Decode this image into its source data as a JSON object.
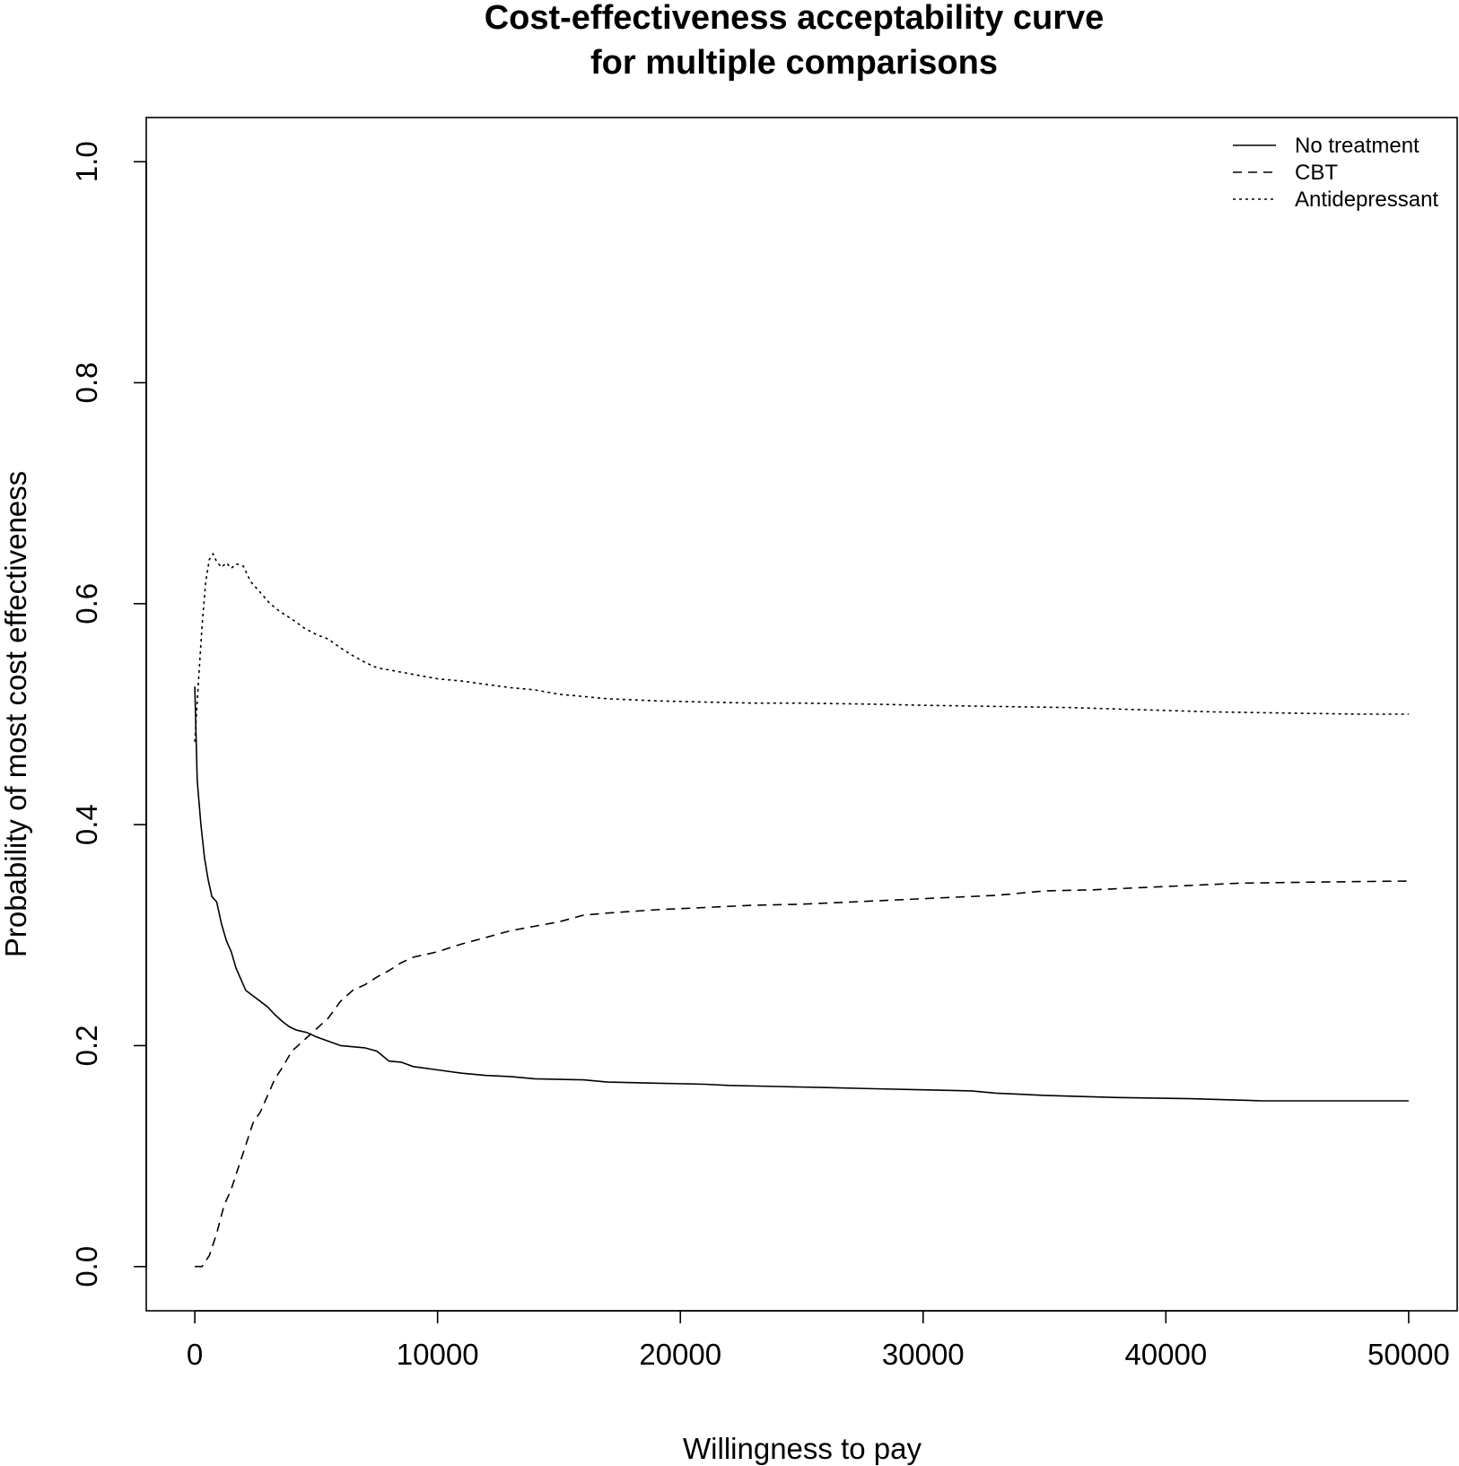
{
  "chart_data": {
    "type": "line",
    "title_lines": [
      "Cost-effectiveness acceptability curve",
      "for multiple comparisons"
    ],
    "xlabel": "Willingness to pay",
    "ylabel": "Probability of most cost effectiveness",
    "xlim": [
      -2000,
      52000
    ],
    "ylim": [
      -0.04,
      1.04
    ],
    "xticks": [
      0,
      10000,
      20000,
      30000,
      40000,
      50000
    ],
    "xtick_labels": [
      "0",
      "10000",
      "20000",
      "30000",
      "40000",
      "50000"
    ],
    "yticks": [
      0.0,
      0.2,
      0.4,
      0.6,
      0.8,
      1.0
    ],
    "ytick_labels": [
      "0.0",
      "0.2",
      "0.4",
      "0.6",
      "0.8",
      "1.0"
    ],
    "grid": false,
    "legend_position": "top-right",
    "series": [
      {
        "name": "No treatment",
        "line_style": "solid",
        "points": [
          [
            0,
            0.525
          ],
          [
            100,
            0.44
          ],
          [
            250,
            0.4
          ],
          [
            400,
            0.37
          ],
          [
            550,
            0.35
          ],
          [
            700,
            0.335
          ],
          [
            900,
            0.33
          ],
          [
            1100,
            0.31
          ],
          [
            1300,
            0.295
          ],
          [
            1500,
            0.285
          ],
          [
            1700,
            0.27
          ],
          [
            1900,
            0.26
          ],
          [
            2100,
            0.25
          ],
          [
            2400,
            0.245
          ],
          [
            2700,
            0.24
          ],
          [
            3000,
            0.235
          ],
          [
            3300,
            0.228
          ],
          [
            3600,
            0.222
          ],
          [
            3900,
            0.217
          ],
          [
            4200,
            0.214
          ],
          [
            4600,
            0.212
          ],
          [
            5000,
            0.208
          ],
          [
            5500,
            0.204
          ],
          [
            6000,
            0.2
          ],
          [
            6500,
            0.199
          ],
          [
            7000,
            0.198
          ],
          [
            7500,
            0.195
          ],
          [
            8000,
            0.186
          ],
          [
            8500,
            0.185
          ],
          [
            9000,
            0.181
          ],
          [
            10000,
            0.178
          ],
          [
            11000,
            0.175
          ],
          [
            12000,
            0.173
          ],
          [
            13000,
            0.172
          ],
          [
            14000,
            0.17
          ],
          [
            16000,
            0.169
          ],
          [
            17000,
            0.167
          ],
          [
            19000,
            0.166
          ],
          [
            21000,
            0.165
          ],
          [
            22000,
            0.164
          ],
          [
            24000,
            0.163
          ],
          [
            26000,
            0.162
          ],
          [
            28000,
            0.161
          ],
          [
            30000,
            0.16
          ],
          [
            32000,
            0.159
          ],
          [
            33000,
            0.157
          ],
          [
            35000,
            0.155
          ],
          [
            38000,
            0.153
          ],
          [
            41000,
            0.152
          ],
          [
            44000,
            0.15
          ],
          [
            47000,
            0.15
          ],
          [
            50000,
            0.15
          ]
        ]
      },
      {
        "name": "CBT",
        "line_style": "dashed",
        "points": [
          [
            0,
            0.0
          ],
          [
            300,
            0.0
          ],
          [
            600,
            0.01
          ],
          [
            900,
            0.03
          ],
          [
            1200,
            0.055
          ],
          [
            1500,
            0.07
          ],
          [
            1800,
            0.09
          ],
          [
            2100,
            0.11
          ],
          [
            2400,
            0.13
          ],
          [
            2700,
            0.14
          ],
          [
            3000,
            0.155
          ],
          [
            3300,
            0.17
          ],
          [
            3600,
            0.18
          ],
          [
            4000,
            0.195
          ],
          [
            4500,
            0.205
          ],
          [
            5000,
            0.215
          ],
          [
            5500,
            0.225
          ],
          [
            6000,
            0.24
          ],
          [
            6500,
            0.25
          ],
          [
            7000,
            0.255
          ],
          [
            7500,
            0.262
          ],
          [
            8000,
            0.268
          ],
          [
            8500,
            0.275
          ],
          [
            9000,
            0.28
          ],
          [
            10000,
            0.285
          ],
          [
            11000,
            0.292
          ],
          [
            12000,
            0.298
          ],
          [
            13000,
            0.304
          ],
          [
            14000,
            0.308
          ],
          [
            15000,
            0.312
          ],
          [
            16000,
            0.318
          ],
          [
            17000,
            0.32
          ],
          [
            19000,
            0.323
          ],
          [
            21000,
            0.325
          ],
          [
            23000,
            0.327
          ],
          [
            25000,
            0.328
          ],
          [
            27000,
            0.33
          ],
          [
            29000,
            0.332
          ],
          [
            31000,
            0.334
          ],
          [
            33000,
            0.336
          ],
          [
            35000,
            0.34
          ],
          [
            37000,
            0.341
          ],
          [
            39000,
            0.343
          ],
          [
            41000,
            0.345
          ],
          [
            43000,
            0.347
          ],
          [
            46000,
            0.348
          ],
          [
            50000,
            0.349
          ]
        ]
      },
      {
        "name": "Antidepressant",
        "line_style": "dotted",
        "points": [
          [
            0,
            0.475
          ],
          [
            150,
            0.53
          ],
          [
            300,
            0.58
          ],
          [
            450,
            0.62
          ],
          [
            600,
            0.64
          ],
          [
            750,
            0.645
          ],
          [
            900,
            0.638
          ],
          [
            1100,
            0.633
          ],
          [
            1300,
            0.637
          ],
          [
            1500,
            0.632
          ],
          [
            1700,
            0.636
          ],
          [
            2000,
            0.634
          ],
          [
            2300,
            0.62
          ],
          [
            2700,
            0.61
          ],
          [
            3100,
            0.6
          ],
          [
            3500,
            0.593
          ],
          [
            4000,
            0.586
          ],
          [
            4500,
            0.578
          ],
          [
            5000,
            0.572
          ],
          [
            5500,
            0.568
          ],
          [
            6000,
            0.56
          ],
          [
            6500,
            0.553
          ],
          [
            7000,
            0.547
          ],
          [
            7500,
            0.542
          ],
          [
            8000,
            0.54
          ],
          [
            8500,
            0.538
          ],
          [
            9000,
            0.536
          ],
          [
            10000,
            0.532
          ],
          [
            11000,
            0.53
          ],
          [
            12000,
            0.527
          ],
          [
            13000,
            0.524
          ],
          [
            14000,
            0.522
          ],
          [
            15000,
            0.518
          ],
          [
            16000,
            0.516
          ],
          [
            17000,
            0.514
          ],
          [
            19000,
            0.512
          ],
          [
            21000,
            0.511
          ],
          [
            23000,
            0.51
          ],
          [
            25000,
            0.51
          ],
          [
            28000,
            0.509
          ],
          [
            30000,
            0.508
          ],
          [
            33000,
            0.507
          ],
          [
            36000,
            0.506
          ],
          [
            39000,
            0.504
          ],
          [
            42000,
            0.502
          ],
          [
            45000,
            0.501
          ],
          [
            48000,
            0.5
          ],
          [
            50000,
            0.5
          ]
        ]
      }
    ]
  }
}
